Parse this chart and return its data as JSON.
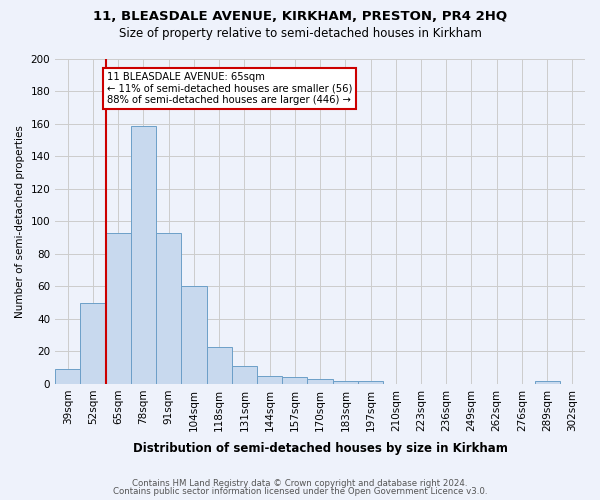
{
  "title": "11, BLEASDALE AVENUE, KIRKHAM, PRESTON, PR4 2HQ",
  "subtitle": "Size of property relative to semi-detached houses in Kirkham",
  "xlabel": "Distribution of semi-detached houses by size in Kirkham",
  "ylabel": "Number of semi-detached properties",
  "footer1": "Contains HM Land Registry data © Crown copyright and database right 2024.",
  "footer2": "Contains public sector information licensed under the Open Government Licence v3.0.",
  "bins": [
    "39sqm",
    "52sqm",
    "65sqm",
    "78sqm",
    "91sqm",
    "104sqm",
    "118sqm",
    "131sqm",
    "144sqm",
    "157sqm",
    "170sqm",
    "183sqm",
    "197sqm",
    "210sqm",
    "223sqm",
    "236sqm",
    "249sqm",
    "262sqm",
    "276sqm",
    "289sqm",
    "302sqm"
  ],
  "values": [
    9,
    50,
    93,
    159,
    93,
    60,
    23,
    11,
    5,
    4,
    3,
    2,
    2,
    0,
    0,
    0,
    0,
    0,
    0,
    2,
    0
  ],
  "bar_color": "#c8d9ee",
  "bar_edge_color": "#6c9fc8",
  "highlight_bar_index": 2,
  "highlight_line_color": "#cc0000",
  "annotation_line1": "11 BLEASDALE AVENUE: 65sqm",
  "annotation_line2": "← 11% of semi-detached houses are smaller (56)",
  "annotation_line3": "88% of semi-detached houses are larger (446) →",
  "annotation_box_color": "#ffffff",
  "annotation_box_edge": "#cc0000",
  "ylim": [
    0,
    200
  ],
  "yticks": [
    0,
    20,
    40,
    60,
    80,
    100,
    120,
    140,
    160,
    180,
    200
  ],
  "grid_color": "#cccccc",
  "bg_color": "#eef2fb"
}
